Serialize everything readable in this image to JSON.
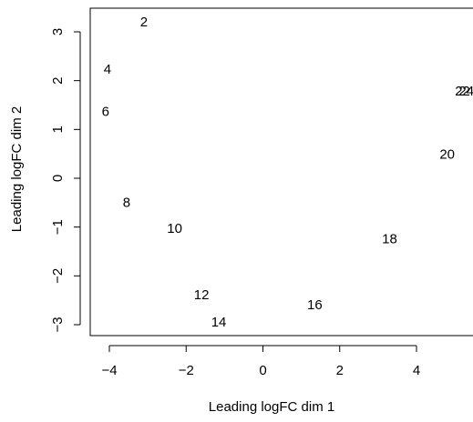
{
  "chart_data": {
    "type": "scatter",
    "title": "",
    "xlabel": "Leading logFC dim 1",
    "ylabel": "Leading logFC dim 2",
    "xlim": [
      -4.5,
      5.5
    ],
    "ylim": [
      -3.25,
      3.5
    ],
    "xticks": [
      -4,
      -2,
      0,
      2,
      4
    ],
    "xtick_labels": [
      "−4",
      "−2",
      "0",
      "2",
      "4"
    ],
    "yticks": [
      -3,
      -2,
      -1,
      0,
      1,
      2,
      3
    ],
    "ytick_labels": [
      "−3",
      "−2",
      "−1",
      "0",
      "1",
      "2",
      "3"
    ],
    "grid": false,
    "legend": "none",
    "marker": "text-label",
    "points": [
      {
        "label": "2",
        "x": -3.1,
        "y": 3.2
      },
      {
        "label": "4",
        "x": -4.05,
        "y": 2.23
      },
      {
        "label": "6",
        "x": -4.1,
        "y": 1.36
      },
      {
        "label": "8",
        "x": -3.55,
        "y": -0.5
      },
      {
        "label": "10",
        "x": -2.3,
        "y": -1.03
      },
      {
        "label": "12",
        "x": -1.6,
        "y": -2.39
      },
      {
        "label": "14",
        "x": -1.15,
        "y": -2.95
      },
      {
        "label": "16",
        "x": 1.35,
        "y": -2.6
      },
      {
        "label": "18",
        "x": 3.3,
        "y": -1.25
      },
      {
        "label": "20",
        "x": 4.8,
        "y": 0.48
      },
      {
        "label": "22",
        "x": 5.2,
        "y": 1.78
      },
      {
        "label": "24",
        "x": 5.3,
        "y": 1.78
      }
    ]
  }
}
